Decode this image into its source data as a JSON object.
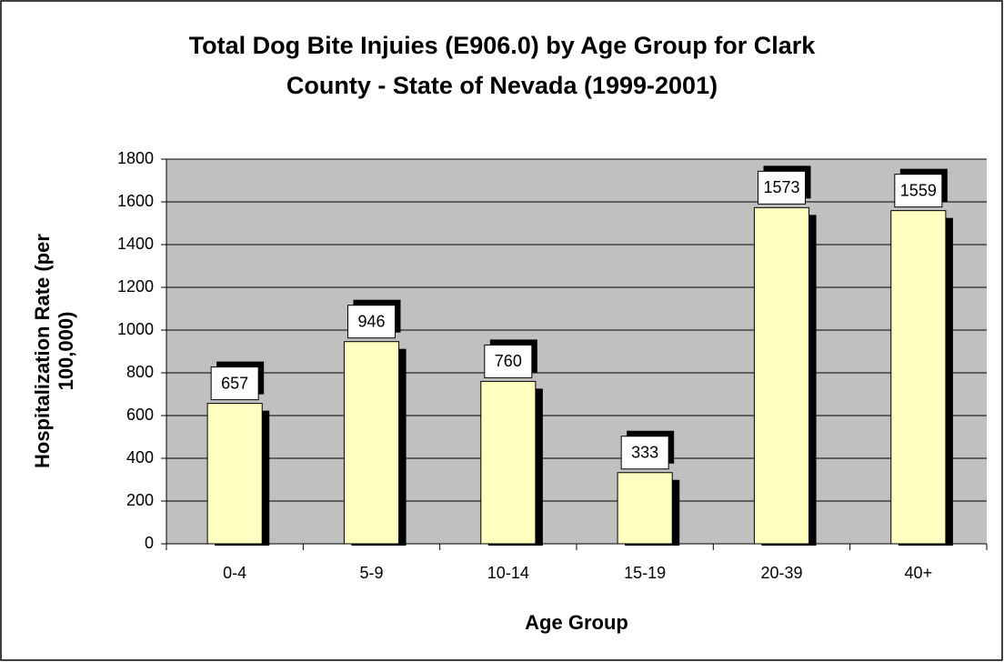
{
  "chart_data": {
    "type": "bar",
    "title": [
      "Total Dog Bite Injuies (E906.0) by Age Group for Clark",
      "County - State of Nevada (1999-2001)"
    ],
    "x_label": "Age Group",
    "y_label": [
      "Hospitalization Rate (per",
      "100,000)"
    ],
    "categories": [
      "0-4",
      "5-9",
      "10-14",
      "15-19",
      "20-39",
      "40+"
    ],
    "values": [
      657,
      946,
      760,
      333,
      1573,
      1559
    ],
    "color": "#ffffc0",
    "ylim": [
      0,
      1800
    ],
    "yticks": [
      0,
      200,
      400,
      600,
      800,
      1000,
      1200,
      1400,
      1600,
      1800
    ],
    "grid": true
  }
}
